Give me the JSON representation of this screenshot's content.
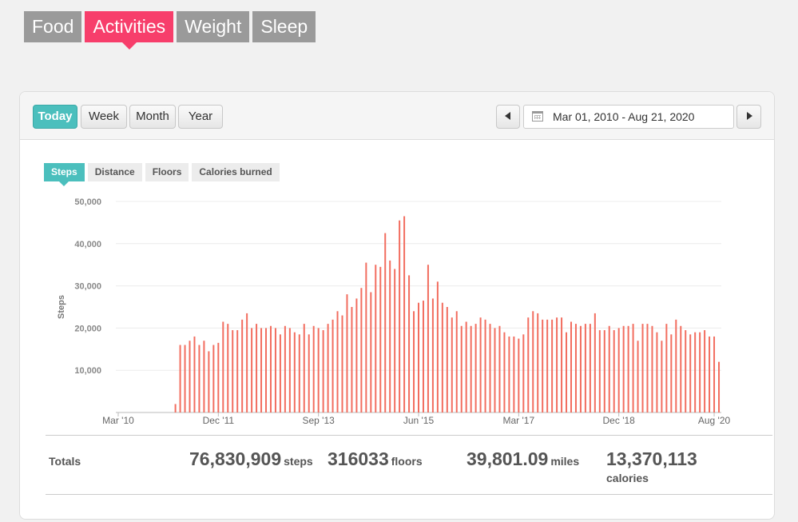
{
  "nav_tabs": [
    {
      "label": "Food",
      "active": false
    },
    {
      "label": "Activities",
      "active": true
    },
    {
      "label": "Weight",
      "active": false
    },
    {
      "label": "Sleep",
      "active": false
    }
  ],
  "period_buttons": [
    {
      "label": "Today",
      "active": true
    },
    {
      "label": "Week",
      "active": false
    },
    {
      "label": "Month",
      "active": false
    },
    {
      "label": "Year",
      "active": false
    }
  ],
  "date_range": {
    "value": "Mar 01, 2010 - Aug 21, 2020",
    "prev_icon": "triangle-left",
    "next_icon": "triangle-right",
    "calendar_icon": "calendar"
  },
  "metric_tabs": [
    {
      "label": "Steps",
      "active": true
    },
    {
      "label": "Distance",
      "active": false
    },
    {
      "label": "Floors",
      "active": false
    },
    {
      "label": "Calories burned",
      "active": false
    }
  ],
  "colors": {
    "bar": "#f26d5f",
    "accent": "#f73e6b",
    "teal": "#4bbfbd"
  },
  "chart_data": {
    "type": "bar",
    "ylabel": "Steps",
    "ylim": [
      0,
      50000
    ],
    "y_ticks": [
      10000,
      20000,
      30000,
      40000,
      50000
    ],
    "y_tick_labels": [
      "10,000",
      "20,000",
      "30,000",
      "40,000",
      "50,000"
    ],
    "x_tick_labels": [
      "Mar '10",
      "Dec '11",
      "Sep '13",
      "Jun '15",
      "Mar '17",
      "Dec '18",
      "Aug '20"
    ],
    "x_tick_index": [
      0,
      21,
      42,
      63,
      84,
      105,
      125
    ],
    "grid": true,
    "values": [
      0,
      0,
      0,
      0,
      0,
      0,
      0,
      0,
      0,
      0,
      0,
      0,
      2000,
      16000,
      16000,
      17000,
      18000,
      16000,
      17000,
      14500,
      16000,
      16500,
      21500,
      21000,
      19500,
      19500,
      22000,
      23500,
      20000,
      21000,
      20000,
      20000,
      20500,
      20000,
      18500,
      20500,
      20000,
      19000,
      18500,
      21000,
      18500,
      20500,
      20000,
      19500,
      21000,
      22000,
      24000,
      23000,
      28000,
      25000,
      27000,
      29500,
      35500,
      28500,
      35000,
      34500,
      42500,
      36000,
      34000,
      45500,
      46500,
      32500,
      24000,
      26000,
      26500,
      35000,
      27000,
      31000,
      26000,
      25000,
      22500,
      24000,
      20500,
      21500,
      20500,
      21000,
      22500,
      22000,
      21000,
      20000,
      20500,
      19000,
      18000,
      18000,
      17500,
      18500,
      22500,
      24000,
      23500,
      22000,
      22000,
      22000,
      22500,
      22500,
      19000,
      21500,
      21000,
      20500,
      21000,
      21000,
      23500,
      19500,
      19500,
      20500,
      19500,
      20000,
      20500,
      20500,
      21000,
      17000,
      21000,
      21000,
      20500,
      19000,
      17000,
      21000,
      18500,
      22000,
      20500,
      19500,
      18500,
      19000,
      19000,
      19500,
      18000,
      18000,
      12000
    ]
  },
  "totals": {
    "label": "Totals",
    "steps": {
      "value": "76,830,909",
      "unit": "steps"
    },
    "floors": {
      "value": "316033",
      "unit": "floors"
    },
    "miles": {
      "value": "39,801.09",
      "unit": "miles"
    },
    "calories": {
      "value": "13,370,113",
      "unit": "calories"
    }
  }
}
